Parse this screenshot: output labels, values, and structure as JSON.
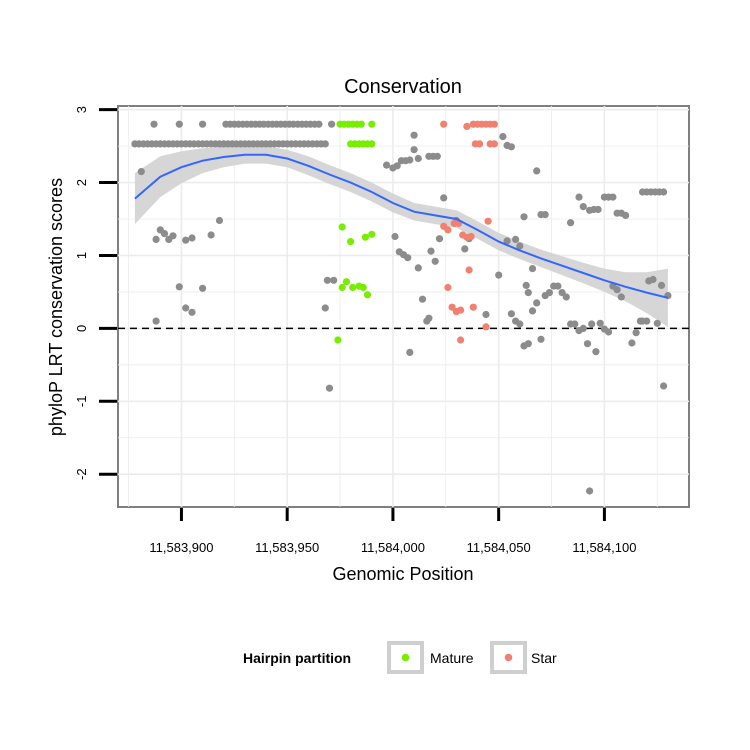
{
  "chart_data": {
    "type": "scatter",
    "title": "Conservation",
    "xlabel": "Genomic Position",
    "ylabel": "phyloP LRT conservation scores",
    "xlim": [
      11583870,
      11584140
    ],
    "ylim": [
      -2.45,
      3.05
    ],
    "x_ticks": [
      11583900,
      11583950,
      11584000,
      11584050,
      11584100
    ],
    "x_tick_labels": [
      "11,583,900",
      "11,583,950",
      "11,584,000",
      "11,584,050",
      "11,584,100"
    ],
    "y_ticks": [
      -2,
      -1,
      0,
      1,
      2,
      3
    ],
    "y_tick_labels": [
      "-2",
      "-1",
      "0",
      "1",
      "2",
      "3"
    ],
    "reference_line": {
      "y": 0,
      "style": "dashed"
    },
    "legend": {
      "title": "Hairpin partition",
      "position": "bottom",
      "entries": [
        {
          "name": "Mature",
          "color": "#77ee00"
        },
        {
          "name": "Star",
          "color": "#f08070"
        }
      ]
    },
    "colors": {
      "other": "#8c8c8c",
      "mature": "#77ee00",
      "star": "#f08070",
      "smooth": "#3366ff",
      "band": "#d2d2d2"
    },
    "series": [
      {
        "name": "Other",
        "points": [
          [
            11583878,
            2.53
          ],
          [
            11583880,
            2.53
          ],
          [
            11583882,
            2.53
          ],
          [
            11583884,
            2.53
          ],
          [
            11583886,
            2.53
          ],
          [
            11583888,
            2.53
          ],
          [
            11583890,
            2.53
          ],
          [
            11583892,
            2.53
          ],
          [
            11583894,
            2.53
          ],
          [
            11583896,
            2.53
          ],
          [
            11583898,
            2.53
          ],
          [
            11583900,
            2.53
          ],
          [
            11583902,
            2.53
          ],
          [
            11583904,
            2.53
          ],
          [
            11583906,
            2.53
          ],
          [
            11583908,
            2.53
          ],
          [
            11583910,
            2.53
          ],
          [
            11583912,
            2.53
          ],
          [
            11583914,
            2.53
          ],
          [
            11583916,
            2.53
          ],
          [
            11583918,
            2.53
          ],
          [
            11583920,
            2.53
          ],
          [
            11583922,
            2.53
          ],
          [
            11583924,
            2.53
          ],
          [
            11583926,
            2.53
          ],
          [
            11583928,
            2.53
          ],
          [
            11583930,
            2.53
          ],
          [
            11583932,
            2.53
          ],
          [
            11583934,
            2.53
          ],
          [
            11583936,
            2.53
          ],
          [
            11583938,
            2.53
          ],
          [
            11583940,
            2.53
          ],
          [
            11583942,
            2.53
          ],
          [
            11583944,
            2.53
          ],
          [
            11583946,
            2.53
          ],
          [
            11583948,
            2.53
          ],
          [
            11583950,
            2.53
          ],
          [
            11583952,
            2.53
          ],
          [
            11583954,
            2.53
          ],
          [
            11583956,
            2.53
          ],
          [
            11583958,
            2.53
          ],
          [
            11583960,
            2.53
          ],
          [
            11583962,
            2.53
          ],
          [
            11583964,
            2.53
          ],
          [
            11583966,
            2.53
          ],
          [
            11583968,
            2.53
          ],
          [
            11583887,
            2.8
          ],
          [
            11583899,
            2.8
          ],
          [
            11583910,
            2.8
          ],
          [
            11583921,
            2.8
          ],
          [
            11583923,
            2.8
          ],
          [
            11583925,
            2.8
          ],
          [
            11583927,
            2.8
          ],
          [
            11583929,
            2.8
          ],
          [
            11583931,
            2.8
          ],
          [
            11583933,
            2.8
          ],
          [
            11583935,
            2.8
          ],
          [
            11583937,
            2.8
          ],
          [
            11583939,
            2.8
          ],
          [
            11583941,
            2.8
          ],
          [
            11583943,
            2.8
          ],
          [
            11583945,
            2.8
          ],
          [
            11583947,
            2.8
          ],
          [
            11583949,
            2.8
          ],
          [
            11583951,
            2.8
          ],
          [
            11583953,
            2.8
          ],
          [
            11583955,
            2.8
          ],
          [
            11583957,
            2.8
          ],
          [
            11583959,
            2.8
          ],
          [
            11583961,
            2.8
          ],
          [
            11583963,
            2.8
          ],
          [
            11583965,
            2.8
          ],
          [
            11583971,
            2.8
          ],
          [
            11583881,
            2.15
          ],
          [
            11583888,
            1.22
          ],
          [
            11583890,
            1.35
          ],
          [
            11583892,
            1.3
          ],
          [
            11583894,
            1.22
          ],
          [
            11583896,
            1.27
          ],
          [
            11583902,
            1.21
          ],
          [
            11583905,
            1.24
          ],
          [
            11583914,
            1.28
          ],
          [
            11583918,
            1.48
          ],
          [
            11583910,
            0.55
          ],
          [
            11583899,
            0.57
          ],
          [
            11583902,
            0.28
          ],
          [
            11583905,
            0.22
          ],
          [
            11583888,
            0.1
          ],
          [
            11583968,
            0.28
          ],
          [
            11583969,
            0.66
          ],
          [
            11583972,
            0.66
          ],
          [
            11583970,
            -0.82
          ],
          [
            11583997,
            2.24
          ],
          [
            11584000,
            2.2
          ],
          [
            11584002,
            2.23
          ],
          [
            11584004,
            2.3
          ],
          [
            11584006,
            2.3
          ],
          [
            11584008,
            2.31
          ],
          [
            11584010,
            2.45
          ],
          [
            11584012,
            2.33
          ],
          [
            11584017,
            2.36
          ],
          [
            11584019,
            2.36
          ],
          [
            11584021,
            2.36
          ],
          [
            11584010,
            2.65
          ],
          [
            11584001,
            1.26
          ],
          [
            11584003,
            1.05
          ],
          [
            11584005,
            1.01
          ],
          [
            11584007,
            0.97
          ],
          [
            11584012,
            0.83
          ],
          [
            11584014,
            0.4
          ],
          [
            11584018,
            1.06
          ],
          [
            11584020,
            0.92
          ],
          [
            11584022,
            1.23
          ],
          [
            11584017,
            0.14
          ],
          [
            11584016,
            0.1
          ],
          [
            11584008,
            -0.33
          ],
          [
            11584024,
            1.79
          ],
          [
            11584030,
            1.48
          ],
          [
            11584034,
            1.09
          ],
          [
            11584036,
            1.23
          ],
          [
            11584044,
            0.19
          ],
          [
            11584050,
            0.73
          ],
          [
            11584052,
            2.63
          ],
          [
            11584054,
            2.51
          ],
          [
            11584056,
            2.49
          ],
          [
            11584054,
            1.2
          ],
          [
            11584058,
            1.22
          ],
          [
            11584060,
            1.13
          ],
          [
            11584062,
            1.53
          ],
          [
            11584063,
            0.59
          ],
          [
            11584064,
            0.49
          ],
          [
            11584066,
            0.82
          ],
          [
            11584068,
            2.16
          ],
          [
            11584070,
            1.56
          ],
          [
            11584072,
            1.56
          ],
          [
            11584056,
            0.2
          ],
          [
            11584058,
            0.1
          ],
          [
            11584060,
            0.06
          ],
          [
            11584062,
            -0.24
          ],
          [
            11584064,
            -0.21
          ],
          [
            11584066,
            0.24
          ],
          [
            11584068,
            0.35
          ],
          [
            11584070,
            -0.15
          ],
          [
            11584072,
            0.45
          ],
          [
            11584074,
            0.49
          ],
          [
            11584076,
            0.58
          ],
          [
            11584078,
            0.58
          ],
          [
            11584080,
            0.49
          ],
          [
            11584082,
            0.43
          ],
          [
            11584084,
            0.06
          ],
          [
            11584086,
            0.06
          ],
          [
            11584088,
            -0.03
          ],
          [
            11584090,
            0.0
          ],
          [
            11584092,
            -0.21
          ],
          [
            11584094,
            0.06
          ],
          [
            11584096,
            -0.32
          ],
          [
            11584098,
            0.07
          ],
          [
            11584100,
            -0.01
          ],
          [
            11584102,
            -0.05
          ],
          [
            11584104,
            0.58
          ],
          [
            11584106,
            0.53
          ],
          [
            11584108,
            0.43
          ],
          [
            11584084,
            1.45
          ],
          [
            11584088,
            1.8
          ],
          [
            11584090,
            1.67
          ],
          [
            11584093,
            1.62
          ],
          [
            11584095,
            1.63
          ],
          [
            11584097,
            1.63
          ],
          [
            11584100,
            1.8
          ],
          [
            11584102,
            1.8
          ],
          [
            11584104,
            1.8
          ],
          [
            11584106,
            1.58
          ],
          [
            11584108,
            1.58
          ],
          [
            11584110,
            1.55
          ],
          [
            11584113,
            -0.2
          ],
          [
            11584115,
            -0.06
          ],
          [
            11584117,
            0.1
          ],
          [
            11584118,
            0.1
          ],
          [
            11584120,
            0.1
          ],
          [
            11584121,
            0.65
          ],
          [
            11584123,
            0.67
          ],
          [
            11584125,
            0.07
          ],
          [
            11584127,
            0.59
          ],
          [
            11584128,
            -0.79
          ],
          [
            11584130,
            0.45
          ],
          [
            11584118,
            1.87
          ],
          [
            11584120,
            1.87
          ],
          [
            11584122,
            1.87
          ],
          [
            11584124,
            1.87
          ],
          [
            11584126,
            1.87
          ],
          [
            11584128,
            1.87
          ],
          [
            11584093,
            -2.23
          ]
        ]
      },
      {
        "name": "Mature",
        "points": [
          [
            11583975,
            2.8
          ],
          [
            11583977,
            2.8
          ],
          [
            11583979,
            2.8
          ],
          [
            11583981,
            2.8
          ],
          [
            11583983,
            2.8
          ],
          [
            11583985,
            2.8
          ],
          [
            11583990,
            2.8
          ],
          [
            11583980,
            2.53
          ],
          [
            11583982,
            2.53
          ],
          [
            11583984,
            2.53
          ],
          [
            11583986,
            2.53
          ],
          [
            11583988,
            2.53
          ],
          [
            11583990,
            2.53
          ],
          [
            11583976,
            1.39
          ],
          [
            11583980,
            1.19
          ],
          [
            11583987,
            1.25
          ],
          [
            11583990,
            1.29
          ],
          [
            11583976,
            0.56
          ],
          [
            11583978,
            0.64
          ],
          [
            11583981,
            0.56
          ],
          [
            11583984,
            0.58
          ],
          [
            11583986,
            0.56
          ],
          [
            11583988,
            0.46
          ],
          [
            11583974,
            -0.16
          ]
        ]
      },
      {
        "name": "Star",
        "points": [
          [
            11584024,
            2.8
          ],
          [
            11584035,
            2.77
          ],
          [
            11584038,
            2.8
          ],
          [
            11584040,
            2.8
          ],
          [
            11584042,
            2.8
          ],
          [
            11584044,
            2.8
          ],
          [
            11584046,
            2.8
          ],
          [
            11584048,
            2.8
          ],
          [
            11584039,
            2.53
          ],
          [
            11584041,
            2.53
          ],
          [
            11584046,
            2.53
          ],
          [
            11584048,
            2.53
          ],
          [
            11584024,
            1.4
          ],
          [
            11584026,
            1.35
          ],
          [
            11584029,
            1.44
          ],
          [
            11584031,
            1.44
          ],
          [
            11584033,
            1.28
          ],
          [
            11584035,
            1.25
          ],
          [
            11584037,
            1.26
          ],
          [
            11584045,
            1.47
          ],
          [
            11584026,
            0.56
          ],
          [
            11584036,
            0.8
          ],
          [
            11584038,
            0.29
          ],
          [
            11584028,
            0.29
          ],
          [
            11584030,
            0.23
          ],
          [
            11584032,
            0.25
          ],
          [
            11584032,
            -0.16
          ],
          [
            11584044,
            0.02
          ]
        ]
      }
    ],
    "smooth": {
      "x": [
        11583878,
        11583890,
        11583900,
        11583910,
        11583920,
        11583930,
        11583940,
        11583950,
        11583960,
        11583970,
        11583980,
        11583990,
        11584000,
        11584010,
        11584020,
        11584030,
        11584040,
        11584050,
        11584060,
        11584070,
        11584080,
        11584090,
        11584100,
        11584110,
        11584120,
        11584130
      ],
      "y": [
        1.78,
        2.08,
        2.21,
        2.3,
        2.35,
        2.38,
        2.38,
        2.33,
        2.23,
        2.11,
        2.0,
        1.87,
        1.72,
        1.6,
        1.55,
        1.5,
        1.35,
        1.19,
        1.07,
        0.96,
        0.86,
        0.76,
        0.66,
        0.57,
        0.49,
        0.42
      ],
      "se": [
        0.35,
        0.28,
        0.22,
        0.17,
        0.14,
        0.12,
        0.12,
        0.12,
        0.13,
        0.13,
        0.13,
        0.13,
        0.13,
        0.12,
        0.12,
        0.12,
        0.12,
        0.12,
        0.12,
        0.12,
        0.13,
        0.14,
        0.16,
        0.2,
        0.28,
        0.4
      ]
    }
  }
}
